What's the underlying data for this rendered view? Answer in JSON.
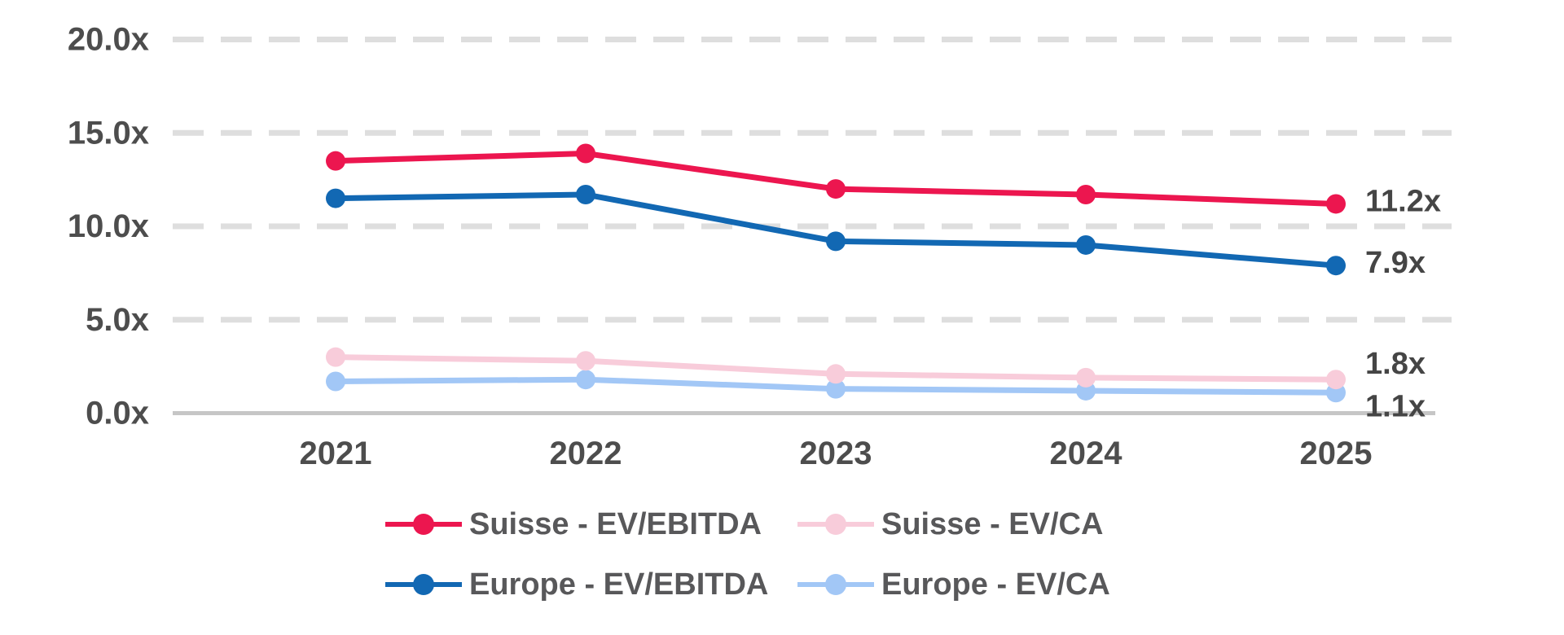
{
  "chart_data": {
    "type": "line",
    "title": "",
    "xlabel": "",
    "ylabel": "",
    "categories": [
      "2021",
      "2022",
      "2023",
      "2024",
      "2025"
    ],
    "series": [
      {
        "name": "Suisse - EV/EBITDA",
        "color": "#EC164F",
        "values": [
          13.5,
          13.9,
          12.0,
          11.7,
          11.2
        ],
        "end_label": "11.2x"
      },
      {
        "name": "Suisse - EV/CA",
        "color": "#F8CCDA",
        "values": [
          3.0,
          2.8,
          2.1,
          1.9,
          1.8
        ],
        "end_label": "1.8x"
      },
      {
        "name": "Europe - EV/EBITDA",
        "color": "#1268B3",
        "values": [
          11.5,
          11.7,
          9.2,
          9.0,
          7.9
        ],
        "end_label": "7.9x"
      },
      {
        "name": "Europe - EV/CA",
        "color": "#A2C7F6",
        "values": [
          1.7,
          1.8,
          1.3,
          1.2,
          1.1
        ],
        "end_label": "1.1x"
      }
    ],
    "ylim": [
      0,
      20
    ],
    "ytick_step": 5,
    "ytick_labels": [
      "0.0x",
      "5.0x",
      "10.0x",
      "15.0x",
      "20.0x"
    ],
    "grid": "horizontal-dashed",
    "legend_position": "bottom"
  },
  "palette": {
    "background": "#FFFFFF",
    "gridline": "#DEDEDE",
    "axis_line": "#C6C6C6",
    "tick_text": "#4D4D4D",
    "value_label_text": "#454545",
    "legend_text": "#58585A"
  }
}
